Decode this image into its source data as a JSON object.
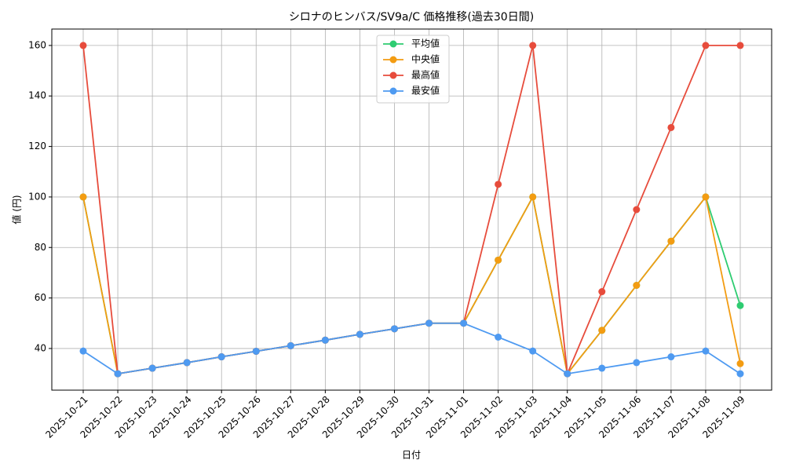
{
  "chart_data": {
    "type": "line",
    "title": "シロナのヒンバス/SV9a/C 価格推移(過去30日間)",
    "x_label": "日付",
    "y_label": "値 (円)",
    "categories": [
      "2025-10-21",
      "2025-10-22",
      "2025-10-23",
      "2025-10-24",
      "2025-10-25",
      "2025-10-26",
      "2025-10-27",
      "2025-10-28",
      "2025-10-29",
      "2025-10-30",
      "2025-10-31",
      "2025-11-01",
      "2025-11-02",
      "2025-11-03",
      "2025-11-04",
      "2025-11-05",
      "2025-11-06",
      "2025-11-07",
      "2025-11-08",
      "2025-11-09"
    ],
    "series": [
      {
        "name": "平均値",
        "color": "#2ecc71",
        "values": [
          100,
          30,
          32.2,
          34.4,
          36.7,
          38.9,
          41.1,
          43.3,
          45.6,
          47.8,
          50,
          50,
          75,
          100,
          30,
          47.2,
          65,
          82.5,
          100,
          57
        ]
      },
      {
        "name": "中央値",
        "color": "#f39c12",
        "values": [
          100,
          30,
          32.2,
          34.4,
          36.7,
          38.9,
          41.1,
          43.3,
          45.6,
          47.8,
          50,
          50,
          75,
          100,
          30,
          47.2,
          65,
          82.5,
          100,
          34
        ]
      },
      {
        "name": "最高値",
        "color": "#e74c3c",
        "values": [
          160,
          30,
          32.2,
          34.4,
          36.7,
          38.9,
          41.1,
          43.3,
          45.6,
          47.8,
          50,
          50,
          105,
          160,
          30,
          62.5,
          95,
          127.5,
          160,
          160
        ]
      },
      {
        "name": "最安値",
        "color": "#4e9af1",
        "values": [
          39,
          30,
          32.2,
          34.4,
          36.7,
          38.9,
          41.1,
          43.3,
          45.6,
          47.8,
          50,
          50,
          44.5,
          39,
          30,
          32.2,
          34.4,
          36.7,
          39,
          30
        ]
      }
    ],
    "ylim": [
      23.5,
      166.5
    ],
    "yticks": [
      40,
      60,
      80,
      100,
      120,
      140,
      160
    ],
    "grid": true,
    "legend": "upper center"
  }
}
